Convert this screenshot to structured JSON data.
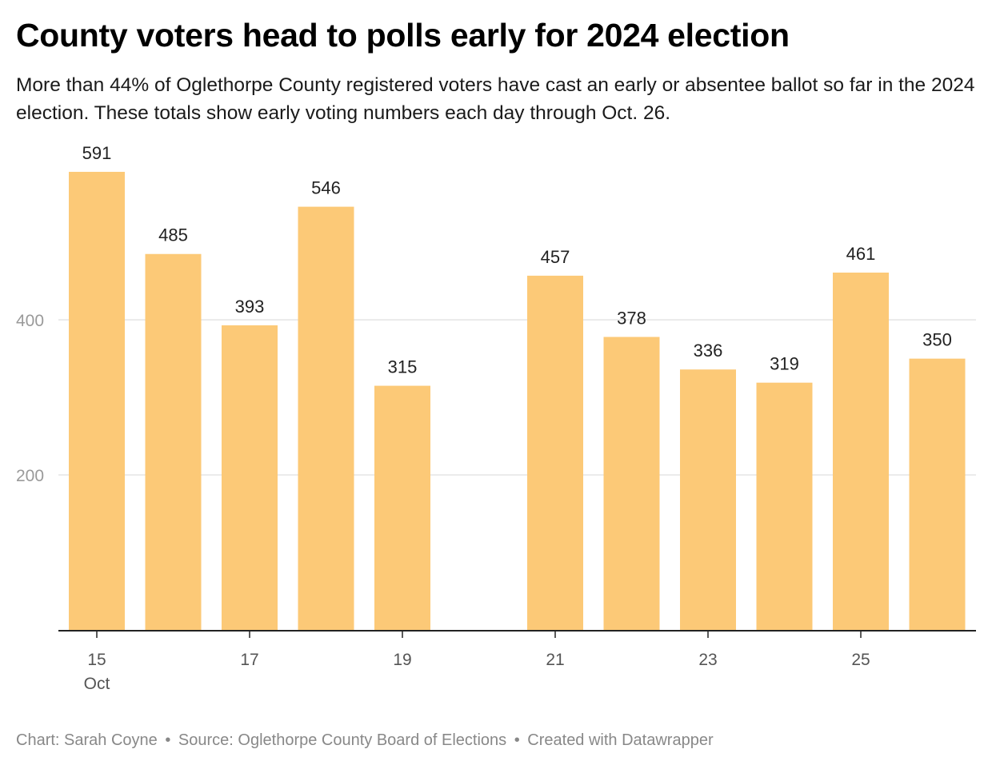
{
  "header": {
    "title": "County voters head to polls early for 2024 election",
    "subtitle": "More than 44% of Oglethorpe County registered voters have cast an early or absentee ballot so far in the 2024 election. These totals show early voting numbers each day through Oct. 26."
  },
  "footer": {
    "credit": "Chart: Sarah Coyne",
    "source": "Source: Oglethorpe County Board of Elections",
    "tool": "Created with Datawrapper",
    "separator": "•"
  },
  "colors": {
    "bar": "#fcc977",
    "grid": "#e4e4e4",
    "axis": "#222222",
    "tick_label": "#9a9a9a",
    "x_label": "#555555",
    "value_label": "#222222"
  },
  "chart_data": {
    "type": "bar",
    "title": "",
    "xlabel": "",
    "ylabel": "",
    "ylim": [
      0,
      600
    ],
    "yticks": [
      200,
      400
    ],
    "grid": true,
    "x": [
      "2024-10-15",
      "2024-10-16",
      "2024-10-17",
      "2024-10-18",
      "2024-10-19",
      "2024-10-20",
      "2024-10-21",
      "2024-10-22",
      "2024-10-23",
      "2024-10-24",
      "2024-10-25",
      "2024-10-26"
    ],
    "values": [
      591,
      485,
      393,
      546,
      315,
      null,
      457,
      378,
      336,
      319,
      461,
      350
    ],
    "x_ticks": [
      {
        "label": "15",
        "sublabel": "Oct",
        "at": "2024-10-15"
      },
      {
        "label": "17",
        "at": "2024-10-17"
      },
      {
        "label": "19",
        "at": "2024-10-19"
      },
      {
        "label": "21",
        "at": "2024-10-21"
      },
      {
        "label": "23",
        "at": "2024-10-23"
      },
      {
        "label": "25",
        "at": "2024-10-25"
      }
    ]
  }
}
